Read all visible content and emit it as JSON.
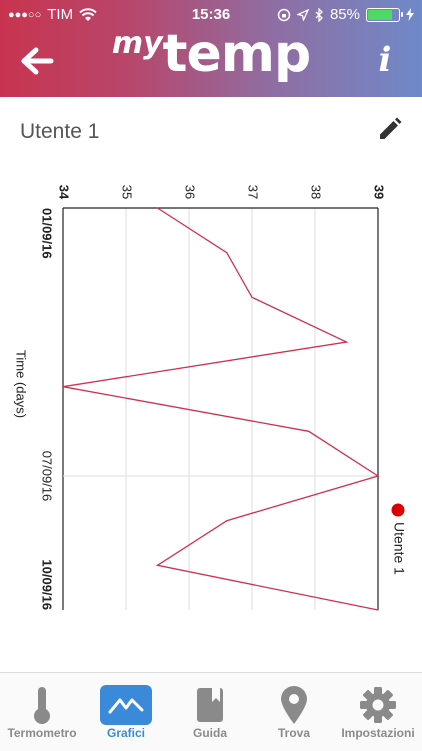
{
  "status_bar": {
    "carrier": "TIM",
    "signal_dots": "●●●○○",
    "time": "15:36",
    "battery_percent": "85%",
    "battery_level": 0.85
  },
  "header": {
    "logo_my": "my",
    "logo_temp": "temp",
    "info_label": "i"
  },
  "user": {
    "name": "Utente 1"
  },
  "tabs": [
    {
      "label": "Termometro",
      "icon": "thermometer-icon",
      "active": false
    },
    {
      "label": "Grafici",
      "icon": "chart-icon",
      "active": true
    },
    {
      "label": "Guida",
      "icon": "book-icon",
      "active": false
    },
    {
      "label": "Trova",
      "icon": "location-pin-icon",
      "active": false
    },
    {
      "label": "Impostazioni",
      "icon": "gear-icon",
      "active": false
    }
  ],
  "colors": {
    "series": "#d32f4b",
    "accent": "#3b8ad9",
    "legend_dot": "#dd0000"
  },
  "chart_data": {
    "type": "line",
    "orientation": "rotated-90-clockwise",
    "xlabel": "Time (days)",
    "x_ticks": [
      "01/09/16",
      "07/09/16",
      "10/09/16"
    ],
    "ylim": [
      34,
      39
    ],
    "y_ticks": [
      "34",
      "35",
      "36",
      "37",
      "38",
      "39"
    ],
    "grid": true,
    "legend": "right",
    "series": [
      {
        "name": "Utente 1",
        "x": [
          "01/09/16",
          "02/09/16",
          "03/09/16",
          "04/09/16",
          "05/09/16",
          "06/09/16",
          "07/09/16",
          "08/09/16",
          "09/09/16",
          "10/09/16"
        ],
        "y": [
          35.5,
          36.6,
          37.0,
          38.5,
          34.0,
          37.9,
          39.0,
          36.6,
          35.5,
          39.0
        ]
      }
    ]
  }
}
